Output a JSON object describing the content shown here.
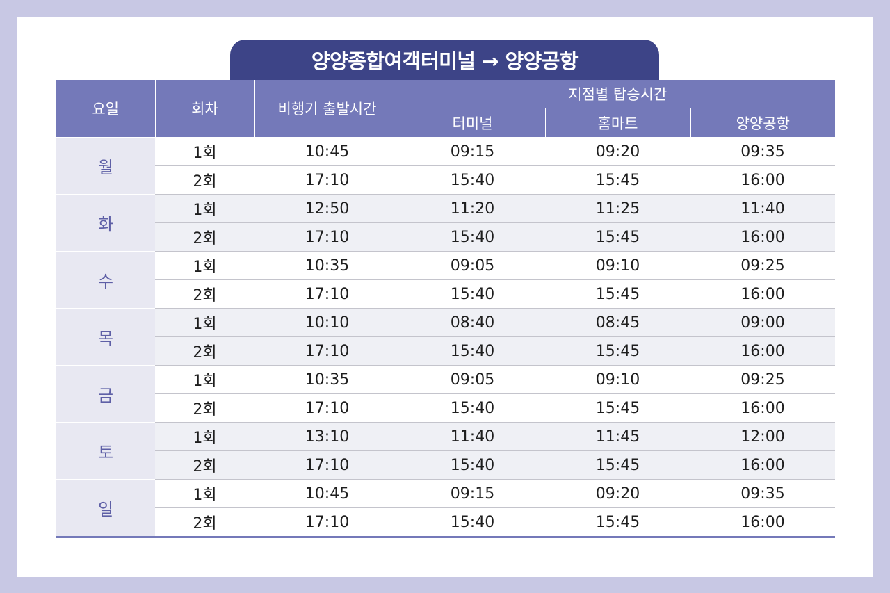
{
  "title": "양양종합여객터미널 → 양양공항",
  "headers": {
    "day": "요일",
    "run": "회차",
    "departure": "비행기 출발시간",
    "boarding_group": "지점별 탑승시간",
    "terminal": "터미널",
    "homemart": "홈마트",
    "airport": "양양공항"
  },
  "days": [
    {
      "day": "월",
      "rows": [
        {
          "run": "1회",
          "departure": "10:45",
          "terminal": "09:15",
          "homemart": "09:20",
          "airport": "09:35"
        },
        {
          "run": "2회",
          "departure": "17:10",
          "terminal": "15:40",
          "homemart": "15:45",
          "airport": "16:00"
        }
      ]
    },
    {
      "day": "화",
      "rows": [
        {
          "run": "1회",
          "departure": "12:50",
          "terminal": "11:20",
          "homemart": "11:25",
          "airport": "11:40"
        },
        {
          "run": "2회",
          "departure": "17:10",
          "terminal": "15:40",
          "homemart": "15:45",
          "airport": "16:00"
        }
      ]
    },
    {
      "day": "수",
      "rows": [
        {
          "run": "1회",
          "departure": "10:35",
          "terminal": "09:05",
          "homemart": "09:10",
          "airport": "09:25"
        },
        {
          "run": "2회",
          "departure": "17:10",
          "terminal": "15:40",
          "homemart": "15:45",
          "airport": "16:00"
        }
      ]
    },
    {
      "day": "목",
      "rows": [
        {
          "run": "1회",
          "departure": "10:10",
          "terminal": "08:40",
          "homemart": "08:45",
          "airport": "09:00"
        },
        {
          "run": "2회",
          "departure": "17:10",
          "terminal": "15:40",
          "homemart": "15:45",
          "airport": "16:00"
        }
      ]
    },
    {
      "day": "금",
      "rows": [
        {
          "run": "1회",
          "departure": "10:35",
          "terminal": "09:05",
          "homemart": "09:10",
          "airport": "09:25"
        },
        {
          "run": "2회",
          "departure": "17:10",
          "terminal": "15:40",
          "homemart": "15:45",
          "airport": "16:00"
        }
      ]
    },
    {
      "day": "토",
      "rows": [
        {
          "run": "1회",
          "departure": "13:10",
          "terminal": "11:40",
          "homemart": "11:45",
          "airport": "12:00"
        },
        {
          "run": "2회",
          "departure": "17:10",
          "terminal": "15:40",
          "homemart": "15:45",
          "airport": "16:00"
        }
      ]
    },
    {
      "day": "일",
      "rows": [
        {
          "run": "1회",
          "departure": "10:45",
          "terminal": "09:15",
          "homemart": "09:20",
          "airport": "09:35"
        },
        {
          "run": "2회",
          "departure": "17:10",
          "terminal": "15:40",
          "homemart": "15:45",
          "airport": "16:00"
        }
      ]
    }
  ],
  "colors": {
    "title_bg": "#3d4487",
    "header_bg": "#7479b9",
    "day_cell_bg": "#e8e8f2",
    "day_text": "#5e5fa6",
    "frame_bg": "#c8c8e4"
  }
}
